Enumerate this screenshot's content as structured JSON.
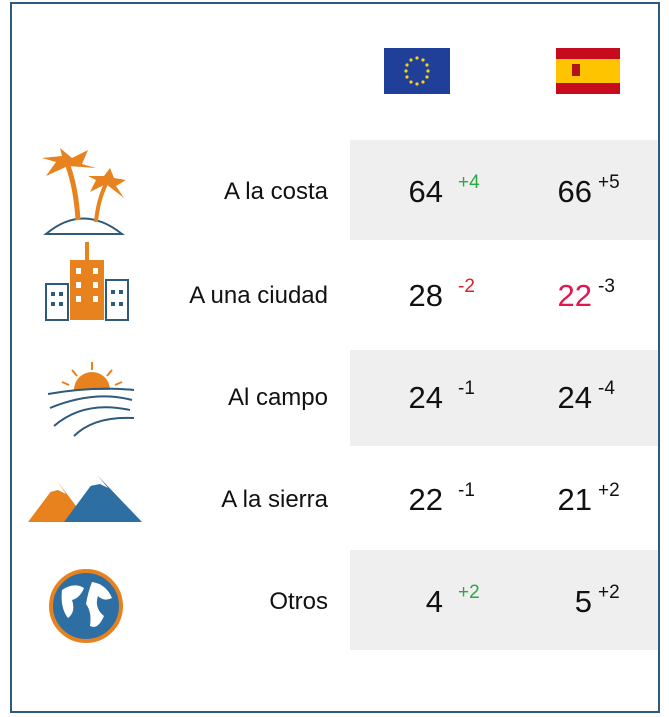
{
  "table": {
    "rows": [
      {
        "label": "A la costa",
        "eu": 64,
        "eu_change": "+4",
        "es": 66,
        "es_change": "+5"
      },
      {
        "label": "A una ciudad",
        "eu": 28,
        "eu_change": "-2",
        "es": 22,
        "es_change": "-3"
      },
      {
        "label": "Al campo",
        "eu": 24,
        "eu_change": "-1",
        "es": 24,
        "es_change": "-4"
      },
      {
        "label": "A la sierra",
        "eu": 22,
        "eu_change": "-1",
        "es": 21,
        "es_change": "+2"
      },
      {
        "label": "Otros",
        "eu": 4,
        "eu_change": "+2",
        "es": 5,
        "es_change": "+2"
      }
    ]
  }
}
